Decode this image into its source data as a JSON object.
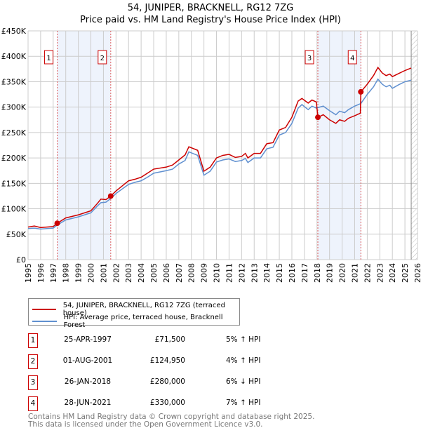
{
  "chart_data": {
    "type": "line",
    "title": "54, JUNIPER, BRACKNELL, RG12 7ZG",
    "subtitle": "Price paid vs. HM Land Registry's House Price Index (HPI)",
    "xlim": [
      1995,
      2026
    ],
    "ylim": [
      0,
      450000
    ],
    "x_ticks": [
      "1995",
      "1996",
      "1997",
      "1998",
      "1999",
      "2000",
      "2001",
      "2002",
      "2003",
      "2004",
      "2005",
      "2006",
      "2007",
      "2008",
      "2009",
      "2010",
      "2011",
      "2012",
      "2013",
      "2014",
      "2015",
      "2016",
      "2017",
      "2018",
      "2019",
      "2020",
      "2021",
      "2022",
      "2023",
      "2024",
      "2025",
      "2026"
    ],
    "y_ticks": [
      {
        "v": 0,
        "label": "£0"
      },
      {
        "v": 50000,
        "label": "£50K"
      },
      {
        "v": 100000,
        "label": "£100K"
      },
      {
        "v": 150000,
        "label": "£150K"
      },
      {
        "v": 200000,
        "label": "£200K"
      },
      {
        "v": 250000,
        "label": "£250K"
      },
      {
        "v": 300000,
        "label": "£300K"
      },
      {
        "v": 350000,
        "label": "£350K"
      },
      {
        "v": 400000,
        "label": "£400K"
      },
      {
        "v": 450000,
        "label": "£450K"
      }
    ],
    "grid": true,
    "shaded_ranges": [
      [
        1997.32,
        2001.58
      ],
      [
        2018.07,
        2021.49
      ]
    ],
    "hatched_from": 2025.5,
    "series": [
      {
        "name": "54, JUNIPER, BRACKNELL, RG12 7ZG (terraced house)",
        "color": "#cc0000",
        "points": [
          [
            1995,
            64
          ],
          [
            1995.5,
            66
          ],
          [
            1996,
            63
          ],
          [
            1996.5,
            64
          ],
          [
            1997,
            65
          ],
          [
            1997.32,
            71.5
          ],
          [
            1998,
            82
          ],
          [
            1999,
            88
          ],
          [
            2000,
            96
          ],
          [
            2000.5,
            110
          ],
          [
            2000.8,
            119
          ],
          [
            2001.2,
            118
          ],
          [
            2001.58,
            125
          ],
          [
            2002,
            135
          ],
          [
            2003,
            155
          ],
          [
            2003.5,
            158
          ],
          [
            2004,
            162
          ],
          [
            2004.5,
            170
          ],
          [
            2005,
            178
          ],
          [
            2006,
            182
          ],
          [
            2006.5,
            186
          ],
          [
            2007,
            196
          ],
          [
            2007.5,
            206
          ],
          [
            2007.8,
            222
          ],
          [
            2008.5,
            215
          ],
          [
            2009,
            174
          ],
          [
            2009.5,
            182
          ],
          [
            2010,
            200
          ],
          [
            2010.5,
            205
          ],
          [
            2011,
            207
          ],
          [
            2011.5,
            201
          ],
          [
            2012,
            203
          ],
          [
            2012.3,
            209
          ],
          [
            2012.5,
            200
          ],
          [
            2013,
            209
          ],
          [
            2013.5,
            209
          ],
          [
            2014,
            228
          ],
          [
            2014.5,
            230
          ],
          [
            2015,
            255
          ],
          [
            2015.5,
            260
          ],
          [
            2016,
            280
          ],
          [
            2016.5,
            312
          ],
          [
            2016.8,
            317
          ],
          [
            2017.3,
            308
          ],
          [
            2017.6,
            314
          ],
          [
            2017.95,
            310
          ],
          [
            2018.07,
            280
          ],
          [
            2018.5,
            285
          ],
          [
            2019,
            275
          ],
          [
            2019.5,
            268
          ],
          [
            2019.8,
            275
          ],
          [
            2020.2,
            272
          ],
          [
            2020.5,
            278
          ],
          [
            2021,
            283
          ],
          [
            2021.45,
            288
          ],
          [
            2021.49,
            330
          ],
          [
            2022,
            345
          ],
          [
            2022.5,
            362
          ],
          [
            2022.85,
            378
          ],
          [
            2023.2,
            367
          ],
          [
            2023.5,
            362
          ],
          [
            2023.8,
            365
          ],
          [
            2024,
            360
          ],
          [
            2024.5,
            366
          ],
          [
            2025,
            372
          ],
          [
            2025.5,
            377
          ]
        ]
      },
      {
        "name": "HPI: Average price, terraced house, Bracknell Forest",
        "color": "#6090d0",
        "points": [
          [
            1995,
            61
          ],
          [
            1995.5,
            62
          ],
          [
            1996,
            60
          ],
          [
            1996.5,
            61
          ],
          [
            1997,
            62
          ],
          [
            1997.32,
            68
          ],
          [
            1998,
            78
          ],
          [
            1999,
            84
          ],
          [
            2000,
            92
          ],
          [
            2000.5,
            105
          ],
          [
            2000.8,
            112
          ],
          [
            2001.2,
            113
          ],
          [
            2001.58,
            120
          ],
          [
            2002,
            130
          ],
          [
            2003,
            148
          ],
          [
            2003.5,
            152
          ],
          [
            2004,
            155
          ],
          [
            2004.5,
            162
          ],
          [
            2005,
            170
          ],
          [
            2006,
            175
          ],
          [
            2006.5,
            178
          ],
          [
            2007,
            188
          ],
          [
            2007.5,
            195
          ],
          [
            2007.8,
            212
          ],
          [
            2008.5,
            205
          ],
          [
            2009,
            166
          ],
          [
            2009.5,
            174
          ],
          [
            2010,
            192
          ],
          [
            2010.5,
            196
          ],
          [
            2011,
            198
          ],
          [
            2011.5,
            193
          ],
          [
            2012,
            195
          ],
          [
            2012.3,
            199
          ],
          [
            2012.5,
            191
          ],
          [
            2013,
            200
          ],
          [
            2013.5,
            200
          ],
          [
            2014,
            218
          ],
          [
            2014.5,
            221
          ],
          [
            2015,
            245
          ],
          [
            2015.5,
            250
          ],
          [
            2016,
            268
          ],
          [
            2016.5,
            298
          ],
          [
            2016.8,
            305
          ],
          [
            2017.3,
            295
          ],
          [
            2017.6,
            302
          ],
          [
            2017.95,
            298
          ],
          [
            2018.07,
            299
          ],
          [
            2018.5,
            302
          ],
          [
            2019,
            293
          ],
          [
            2019.5,
            285
          ],
          [
            2019.8,
            292
          ],
          [
            2020.2,
            289
          ],
          [
            2020.5,
            295
          ],
          [
            2021,
            302
          ],
          [
            2021.49,
            307
          ],
          [
            2022,
            325
          ],
          [
            2022.5,
            340
          ],
          [
            2022.85,
            355
          ],
          [
            2023.2,
            345
          ],
          [
            2023.5,
            340
          ],
          [
            2023.8,
            343
          ],
          [
            2024,
            337
          ],
          [
            2024.5,
            344
          ],
          [
            2025,
            350
          ],
          [
            2025.5,
            353
          ]
        ]
      }
    ],
    "sales": [
      {
        "n": "1",
        "x": 1997.32,
        "y": 71.5
      },
      {
        "n": "2",
        "x": 2001.58,
        "y": 124.95
      },
      {
        "n": "3",
        "x": 2018.07,
        "y": 280
      },
      {
        "n": "4",
        "x": 2021.49,
        "y": 330
      }
    ],
    "y_unit": "thousands GBP"
  },
  "legend": {
    "red": "54, JUNIPER, BRACKNELL, RG12 7ZG (terraced house)",
    "blue": "HPI: Average price, terraced house, Bracknell Forest"
  },
  "transactions": [
    {
      "n": "1",
      "date": "25-APR-1997",
      "price": "£71,500",
      "hpi": "5% ↑ HPI"
    },
    {
      "n": "2",
      "date": "01-AUG-2001",
      "price": "£124,950",
      "hpi": "4% ↑ HPI"
    },
    {
      "n": "3",
      "date": "26-JAN-2018",
      "price": "£280,000",
      "hpi": "6% ↓ HPI"
    },
    {
      "n": "4",
      "date": "28-JUN-2021",
      "price": "£330,000",
      "hpi": "7% ↑ HPI"
    }
  ],
  "footer": {
    "line1": "Contains HM Land Registry data © Crown copyright and database right 2025.",
    "line2": "This data is licensed under the Open Government Licence v3.0."
  }
}
